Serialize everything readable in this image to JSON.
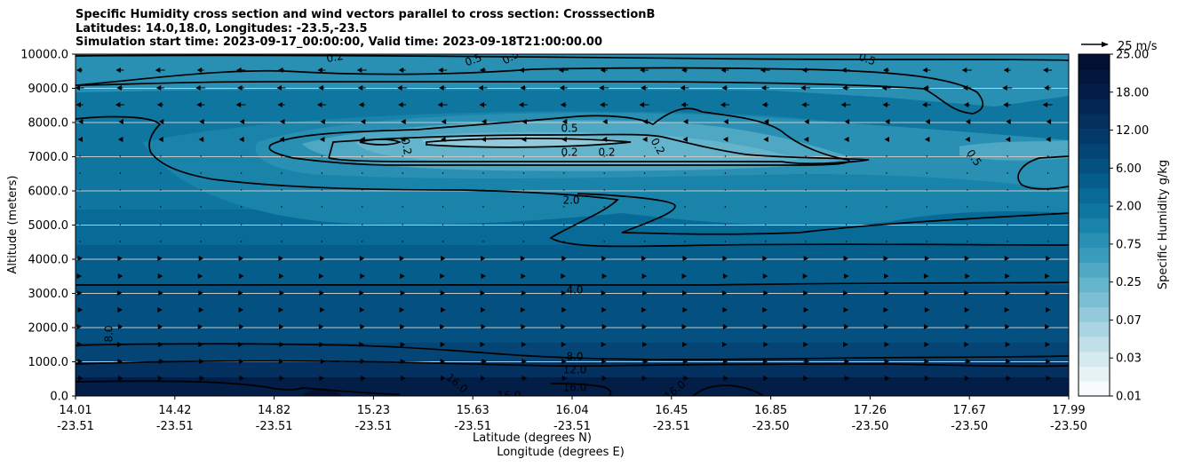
{
  "title": {
    "line1": "Specific Humidity cross section and wind vectors parallel to cross section: CrosssectionB",
    "line2": "Latitudes: 14.0,18.0, Longitudes: -23.5,-23.5",
    "line3": "Simulation start time: 2023-09-17_00:00:00, Valid time: 2023-09-18T21:00:00.00"
  },
  "colors": {
    "levels": [
      "#f7fbfc",
      "#e8f3f6",
      "#d4eaf0",
      "#bfe0e9",
      "#a9d5e2",
      "#92cadb",
      "#7bbfd4",
      "#64b4cc",
      "#4ea8c4",
      "#3a9cbc",
      "#2990b3",
      "#1a83aa",
      "#0f76a0",
      "#086a96",
      "#055d8c",
      "#045181",
      "#044575",
      "#043a69",
      "#03305e",
      "#032752",
      "#021e47",
      "#02173c",
      "#021031"
    ],
    "contour": "#000000"
  },
  "chart_data": {
    "type": "contourf",
    "xlabel": "Latitude (degrees N)",
    "xlabel2": "Longitude (degrees E)",
    "ylabel": "Altitude (meters)",
    "ylim": [
      0,
      10000
    ],
    "x_ticks": [
      {
        "lat": "14.01",
        "lon": "-23.51"
      },
      {
        "lat": "14.42",
        "lon": "-23.51"
      },
      {
        "lat": "14.82",
        "lon": "-23.51"
      },
      {
        "lat": "15.23",
        "lon": "-23.51"
      },
      {
        "lat": "15.63",
        "lon": "-23.51"
      },
      {
        "lat": "16.04",
        "lon": "-23.51"
      },
      {
        "lat": "16.45",
        "lon": "-23.51"
      },
      {
        "lat": "16.85",
        "lon": "-23.50"
      },
      {
        "lat": "17.26",
        "lon": "-23.50"
      },
      {
        "lat": "17.67",
        "lon": "-23.50"
      },
      {
        "lat": "17.99",
        "lon": "-23.50"
      }
    ],
    "y_ticks": [
      "0.0",
      "1000.0",
      "2000.0",
      "3000.0",
      "4000.0",
      "5000.0",
      "6000.0",
      "7000.0",
      "8000.0",
      "9000.0",
      "10000.0"
    ],
    "colorbar": {
      "label": "Specific Humidity g/kg",
      "ticks": [
        "0.01",
        "0.03",
        "0.07",
        "0.25",
        "0.75",
        "2.00",
        "6.00",
        "12.00",
        "18.00",
        "25.00"
      ]
    },
    "quiver_key": "25 m/s",
    "contour_labels": [
      "0.2",
      "0.5",
      "0.5",
      "0.5",
      "0.5",
      "0.2",
      "0.2",
      "0.2",
      "0.2",
      "0.5",
      "2.0",
      "4.0",
      "8.0",
      "8.0",
      "12.0",
      "16.0",
      "16.0",
      "16.0",
      "16.0"
    ]
  }
}
